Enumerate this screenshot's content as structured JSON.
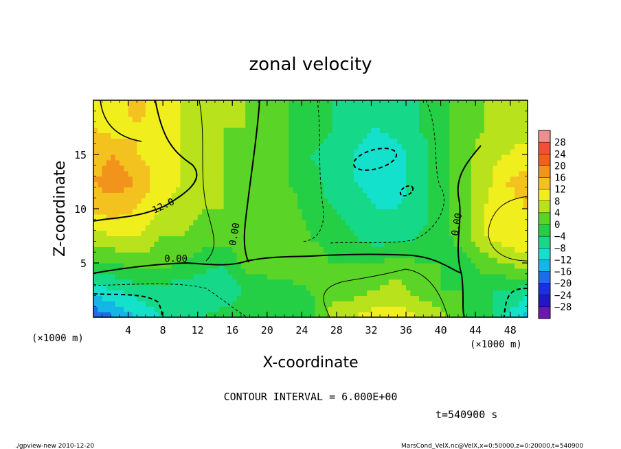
{
  "chart_data": {
    "type": "heatmap",
    "title": "zonal velocity",
    "xlabel": "X-coordinate",
    "ylabel": "Z-coordinate",
    "x_unit": "(×1000 m)",
    "z_unit": "(×1000 m)",
    "xlim": [
      0,
      50
    ],
    "ylim": [
      0,
      20
    ],
    "x_ticks": [
      "4",
      "8",
      "12",
      "16",
      "20",
      "24",
      "28",
      "32",
      "36",
      "40",
      "44",
      "48"
    ],
    "y_ticks": [
      "5",
      "10",
      "15"
    ],
    "contour_labels": [
      {
        "text": "12.0",
        "x": 8.2,
        "y": 10.0
      },
      {
        "text": "0.00",
        "x": 9.5,
        "y": 5.1
      },
      {
        "text": "0.00",
        "x": 16.6,
        "y": 7.6
      },
      {
        "text": "0.00",
        "x": 42.2,
        "y": 8.5
      }
    ],
    "contour_interval_text": "CONTOUR INTERVAL = 6.000E+00",
    "time_text": "t=540900 s",
    "colorbar": {
      "levels": [
        "28",
        "24",
        "20",
        "16",
        "12",
        "8",
        "4",
        "0",
        "-4",
        "-8",
        "-12",
        "-16",
        "-20",
        "-24",
        "-28"
      ],
      "colors": [
        "#ee8f8f",
        "#f24f3a",
        "#f2611a",
        "#f2931c",
        "#f4c21e",
        "#f1ee1e",
        "#b8e21b",
        "#5ad426",
        "#24cf45",
        "#15d988",
        "#14e1cc",
        "#14b6e8",
        "#1e6ce8",
        "#1d2fe5",
        "#2315c8",
        "#6a18b0"
      ]
    },
    "approx_grid": {
      "x": [
        0,
        2.5,
        5,
        7.5,
        10,
        12.5,
        15,
        17.5,
        20,
        22.5,
        25,
        27.5,
        30,
        32.5,
        35,
        37.5,
        40,
        42.5,
        45,
        47.5,
        50
      ],
      "z": [
        0,
        2.5,
        5,
        7.5,
        10,
        12.5,
        15,
        17.5,
        20
      ],
      "values": [
        [
          -20,
          -16,
          -12,
          -8,
          -6,
          -4,
          -2,
          0,
          -2,
          -4,
          -2,
          6,
          8,
          10,
          10,
          8,
          6,
          0,
          -2,
          -8,
          -14
        ],
        [
          -10,
          -8,
          -6,
          -6,
          -6,
          -8,
          -8,
          -4,
          -2,
          -2,
          0,
          2,
          2,
          4,
          6,
          2,
          0,
          0,
          -4,
          -4,
          -6
        ],
        [
          0,
          0,
          2,
          2,
          0,
          -2,
          -4,
          2,
          2,
          4,
          2,
          0,
          0,
          0,
          2,
          0,
          0,
          -2,
          2,
          4,
          6
        ],
        [
          6,
          8,
          8,
          4,
          4,
          2,
          2,
          2,
          2,
          4,
          0,
          -2,
          -4,
          -6,
          -6,
          -4,
          -2,
          2,
          8,
          10,
          12
        ],
        [
          14,
          14,
          12,
          8,
          6,
          4,
          4,
          2,
          2,
          2,
          -2,
          -4,
          -6,
          -8,
          -8,
          -6,
          -2,
          2,
          8,
          10,
          12
        ],
        [
          16,
          18,
          16,
          10,
          8,
          6,
          4,
          4,
          2,
          0,
          -2,
          -6,
          -8,
          -10,
          -10,
          -6,
          -2,
          2,
          6,
          12,
          14
        ],
        [
          14,
          16,
          12,
          10,
          8,
          6,
          4,
          2,
          2,
          0,
          -4,
          -6,
          -8,
          -12,
          -10,
          -6,
          -2,
          2,
          6,
          8,
          10
        ],
        [
          12,
          10,
          12,
          10,
          8,
          6,
          4,
          4,
          2,
          0,
          -2,
          -4,
          -6,
          -8,
          -6,
          -4,
          -2,
          2,
          4,
          6,
          6
        ],
        [
          12,
          10,
          14,
          10,
          8,
          6,
          4,
          4,
          2,
          0,
          -2,
          -4,
          -6,
          -8,
          -6,
          -4,
          -2,
          2,
          4,
          6,
          6
        ]
      ]
    }
  },
  "footer": {
    "left": "./gpview-new   2010-12-20",
    "right": "MarsCond_VelX.nc@VelX,x=0:50000,z=0:20000,t=540900"
  }
}
